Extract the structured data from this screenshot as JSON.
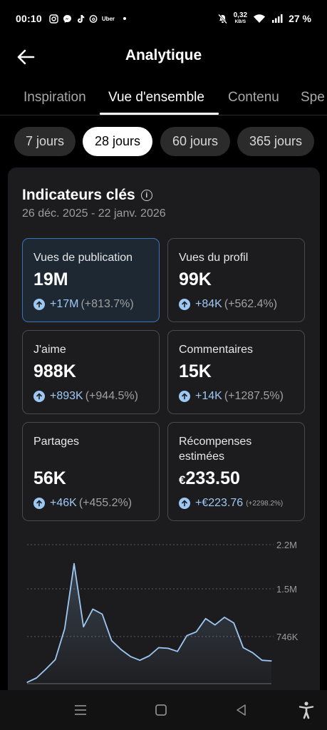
{
  "status": {
    "time": "00:10",
    "speed_value": "0,32",
    "speed_unit": "KB/S",
    "battery": "27 %",
    "uber": "Uber"
  },
  "header": {
    "title": "Analytique"
  },
  "tabs": [
    {
      "label": "Inspiration"
    },
    {
      "label": "Vue d'ensemble"
    },
    {
      "label": "Contenu"
    },
    {
      "label": "Spe"
    }
  ],
  "chips": [
    {
      "label": "7 jours"
    },
    {
      "label": "28 jours"
    },
    {
      "label": "60 jours"
    },
    {
      "label": "365 jours"
    }
  ],
  "card": {
    "title": "Indicateurs clés",
    "info_glyph": "i",
    "date_range": "26 déc. 2025 - 22 janv. 2026"
  },
  "metrics": [
    {
      "label": "Vues de publication",
      "value": "19M",
      "delta_abs": "+17M",
      "delta_pct": "(+813.7%)"
    },
    {
      "label": "Vues du profil",
      "value": "99K",
      "delta_abs": "+84K",
      "delta_pct": "(+562.4%)"
    },
    {
      "label": "J'aime",
      "value": "988K",
      "delta_abs": "+893K",
      "delta_pct": "(+944.5%)"
    },
    {
      "label": "Commentaires",
      "value": "15K",
      "delta_abs": "+14K",
      "delta_pct": "(+1287.5%)"
    },
    {
      "label": "Partages",
      "value": "56K",
      "delta_abs": "+46K",
      "delta_pct": "(+455.2%)"
    },
    {
      "label_line1": "Récompenses",
      "label_line2": "estimées",
      "currency": "€",
      "value": "233.50",
      "delta_abs": "+€223.76",
      "delta_pct": "(+2298.2%)"
    }
  ],
  "chart_data": {
    "type": "area",
    "ytick_labels": [
      "2.2M",
      "1.5M",
      "746K"
    ],
    "yticks": [
      2200000,
      1500000,
      746000
    ],
    "ylim": [
      0,
      2200000
    ],
    "grid": true,
    "color": "#9ec8f4",
    "values": [
      20000,
      90000,
      230000,
      380000,
      870000,
      1900000,
      900000,
      1180000,
      1100000,
      680000,
      540000,
      430000,
      370000,
      440000,
      570000,
      560000,
      510000,
      760000,
      820000,
      1030000,
      930000,
      1050000,
      960000,
      570000,
      490000,
      370000,
      360000
    ]
  },
  "colors": {
    "accent": "#9ec8f4",
    "selected_border": "#3a74b8",
    "card_bg": "#1c1c1e"
  }
}
